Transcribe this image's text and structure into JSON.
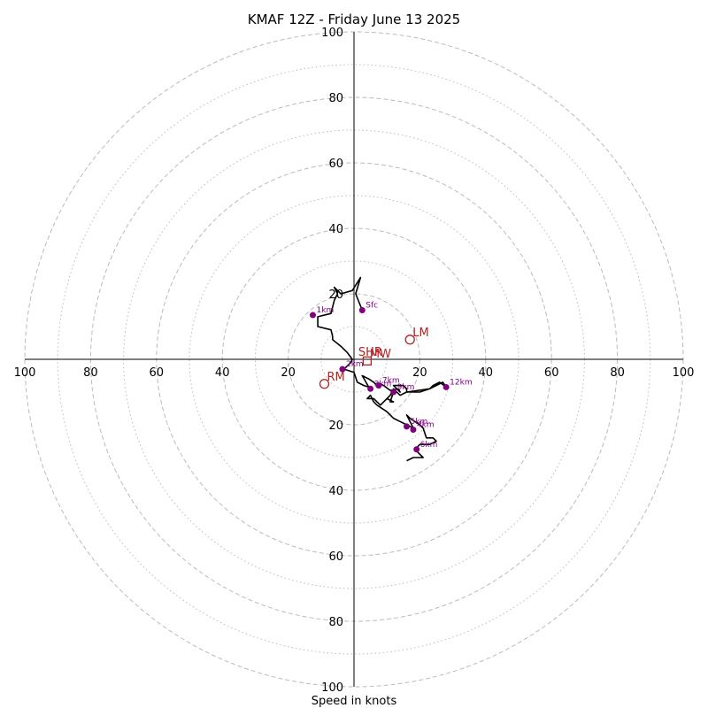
{
  "chart_data": {
    "type": "hodograph",
    "title": "KMAF 12Z - Friday June 13 2025",
    "xlabel": "Speed in knots",
    "range": [
      -100,
      100
    ],
    "ticks": {
      "x": [
        "100",
        "80",
        "60",
        "40",
        "20",
        "20",
        "40",
        "60",
        "80",
        "100"
      ],
      "y": [
        "100",
        "80",
        "60",
        "40",
        "20",
        "20",
        "40",
        "60",
        "80",
        "100"
      ]
    },
    "rings": {
      "major": [
        20,
        40,
        60,
        80,
        100
      ],
      "minor": [
        10,
        30,
        50,
        70,
        90
      ],
      "major_style": "dashed",
      "minor_style": "dotted",
      "color": "#bbbbbb"
    },
    "colors": {
      "trace": "#000000",
      "height_marker": "#800080",
      "motion_marker": "#b22222"
    },
    "trace": [
      [
        2.5,
        15
      ],
      [
        0.5,
        20
      ],
      [
        2,
        25
      ],
      [
        -0.5,
        21
      ],
      [
        -4,
        20
      ],
      [
        -6,
        22
      ],
      [
        -5,
        20
      ],
      [
        -6,
        18
      ],
      [
        -7,
        14
      ],
      [
        -11,
        13
      ],
      [
        -11,
        10
      ],
      [
        -7,
        9
      ],
      [
        -6.5,
        7
      ],
      [
        -6.5,
        6
      ],
      [
        -4,
        4
      ],
      [
        -2,
        2
      ],
      [
        -0.5,
        0
      ],
      [
        -1,
        -1
      ],
      [
        -3,
        -3
      ],
      [
        0,
        -4
      ],
      [
        1,
        -7
      ],
      [
        3,
        -8
      ],
      [
        4.5,
        -8.5
      ],
      [
        2.5,
        -5
      ],
      [
        4.5,
        -6
      ],
      [
        6,
        -7
      ],
      [
        7,
        -8
      ],
      [
        8,
        -7.5
      ],
      [
        9,
        -8
      ],
      [
        11,
        -9.5
      ],
      [
        13.5,
        -9
      ],
      [
        14,
        -10
      ],
      [
        12,
        -8
      ],
      [
        15,
        -8
      ],
      [
        16,
        -9
      ],
      [
        16,
        -10
      ],
      [
        23,
        -9
      ],
      [
        27,
        -7
      ],
      [
        28,
        -8.5
      ],
      [
        26,
        -7
      ],
      [
        24,
        -8
      ],
      [
        23,
        -9
      ],
      [
        20,
        -10
      ],
      [
        16,
        -10
      ],
      [
        14,
        -11
      ],
      [
        12,
        -9
      ],
      [
        11,
        -11
      ],
      [
        10,
        -12
      ],
      [
        12,
        -13
      ],
      [
        11,
        -13
      ],
      [
        12,
        -10
      ],
      [
        8,
        -14
      ],
      [
        6,
        -12
      ],
      [
        4,
        -12
      ],
      [
        5,
        -11
      ],
      [
        6,
        -13
      ],
      [
        7,
        -14
      ],
      [
        10,
        -16
      ],
      [
        12,
        -18
      ],
      [
        14,
        -19
      ],
      [
        16,
        -20
      ],
      [
        18,
        -21
      ],
      [
        16,
        -17
      ],
      [
        17,
        -18
      ],
      [
        20,
        -20
      ],
      [
        21,
        -21
      ],
      [
        22,
        -24
      ],
      [
        24,
        -24
      ],
      [
        25,
        -25
      ],
      [
        23,
        -26
      ],
      [
        20,
        -26
      ],
      [
        19,
        -27
      ],
      [
        19,
        -28
      ],
      [
        20,
        -29
      ],
      [
        21,
        -30
      ],
      [
        18,
        -30
      ],
      [
        16,
        -31
      ]
    ],
    "height_markers": [
      {
        "label": "Sfc",
        "u": 2.5,
        "v": 15
      },
      {
        "label": "1km",
        "u": -12.5,
        "v": 13.5
      },
      {
        "label": "2km",
        "u": -3.5,
        "v": -3
      },
      {
        "label": "3km",
        "u": 5,
        "v": -9
      },
      {
        "label": "7km",
        "u": 7.5,
        "v": -8
      },
      {
        "label": "9km",
        "u": 12,
        "v": -10
      },
      {
        "label": "12km",
        "u": 28,
        "v": -8.5
      },
      {
        "label": "5km",
        "u": 16,
        "v": -20.5
      },
      {
        "label": "4km",
        "u": 18,
        "v": -21.5
      },
      {
        "label": "6km",
        "u": 19,
        "v": -27.5
      }
    ],
    "storm_motion": [
      {
        "label": "LM",
        "u": 17,
        "v": 6,
        "marker": "circle"
      },
      {
        "label": "RM",
        "u": -9,
        "v": -7.5,
        "marker": "circle"
      },
      {
        "label": "MW",
        "u": 4,
        "v": -0.5,
        "marker": "square"
      },
      {
        "label": "SHR",
        "u": 0.5,
        "v": 0,
        "marker": "none"
      }
    ]
  }
}
